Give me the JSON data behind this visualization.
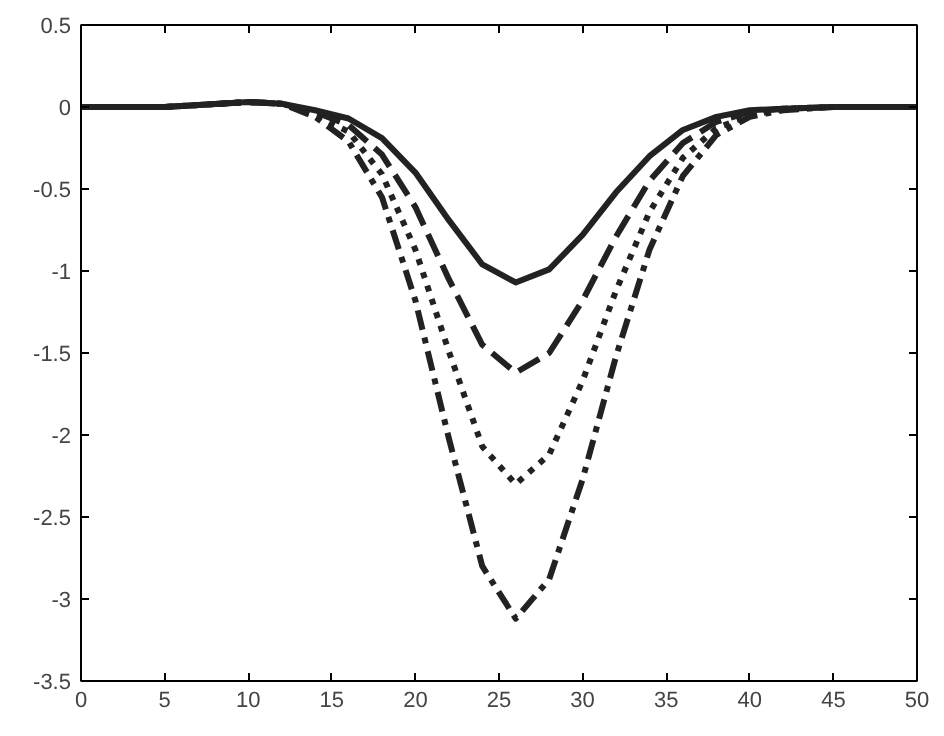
{
  "chart_data": {
    "type": "line",
    "x": [
      0,
      5,
      10,
      12,
      14,
      16,
      18,
      20,
      22,
      24,
      26,
      28,
      30,
      32,
      34,
      36,
      38,
      40,
      42,
      45,
      50
    ],
    "series": [
      {
        "color": "#222222",
        "line_style": "solid",
        "values": [
          0,
          0,
          0.03,
          0.02,
          -0.02,
          -0.07,
          -0.19,
          -0.4,
          -0.69,
          -0.96,
          -1.07,
          -0.99,
          -0.78,
          -0.52,
          -0.3,
          -0.14,
          -0.06,
          -0.02,
          -0.01,
          0,
          0
        ]
      },
      {
        "color": "#222222",
        "line_style": "dashed",
        "values": [
          0,
          0,
          0.03,
          0.02,
          -0.03,
          -0.11,
          -0.29,
          -0.61,
          -1.05,
          -1.45,
          -1.62,
          -1.5,
          -1.18,
          -0.79,
          -0.45,
          -0.22,
          -0.09,
          -0.03,
          -0.01,
          0,
          0
        ]
      },
      {
        "color": "#222222",
        "line_style": "dotted",
        "values": [
          0,
          0,
          0.03,
          0.02,
          -0.05,
          -0.15,
          -0.41,
          -0.87,
          -1.49,
          -2.07,
          -2.3,
          -2.12,
          -1.67,
          -1.12,
          -0.64,
          -0.31,
          -0.13,
          -0.05,
          -0.01,
          0,
          0
        ]
      },
      {
        "color": "#222222",
        "line_style": "dashdot",
        "values": [
          0,
          0,
          0.03,
          0.02,
          -0.06,
          -0.21,
          -0.55,
          -1.18,
          -2.02,
          -2.8,
          -3.12,
          -2.88,
          -2.27,
          -1.52,
          -0.87,
          -0.42,
          -0.17,
          -0.06,
          -0.02,
          0,
          0
        ]
      }
    ],
    "xlim": [
      0,
      50
    ],
    "ylim": [
      -3.5,
      0.5
    ],
    "xticks": [
      0,
      5,
      10,
      15,
      20,
      25,
      30,
      35,
      40,
      45,
      50
    ],
    "yticks": [
      -3.5,
      -3,
      -2.5,
      -2,
      -1.5,
      -1,
      -0.5,
      0,
      0.5
    ],
    "grid": false,
    "marker": "none"
  }
}
